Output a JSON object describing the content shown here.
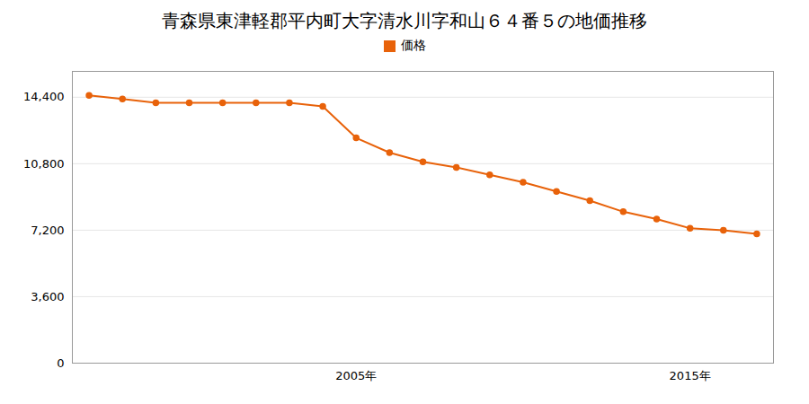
{
  "chart_data": {
    "type": "line",
    "title": "青森県東津軽郡平内町大字清水川字和山６４番５の地価推移",
    "x": [
      1997,
      1998,
      1999,
      2000,
      2001,
      2002,
      2003,
      2004,
      2005,
      2006,
      2007,
      2008,
      2009,
      2010,
      2011,
      2012,
      2013,
      2014,
      2015,
      2016,
      2017
    ],
    "series": [
      {
        "name": "価格",
        "color": "#e8620a",
        "marker": "circle",
        "values": [
          14500,
          14300,
          14100,
          14100,
          14100,
          14100,
          14100,
          13900,
          12200,
          11400,
          10900,
          10600,
          10200,
          9800,
          9300,
          8800,
          8200,
          7800,
          7300,
          7200,
          7000
        ]
      }
    ],
    "xlim": [
      1996.5,
      2017.5
    ],
    "xticks": [
      {
        "value": 2005,
        "label": "2005年"
      },
      {
        "value": 2015,
        "label": "2015年"
      }
    ],
    "ylim": [
      0,
      15800
    ],
    "yticks": [
      0,
      {
        "value": 3600,
        "label": "3,600"
      },
      {
        "value": 7200,
        "label": "7,200"
      },
      {
        "value": 10800,
        "label": "10,800"
      },
      {
        "value": 14400,
        "label": "14,400"
      }
    ],
    "grid": true,
    "legend": "top"
  }
}
